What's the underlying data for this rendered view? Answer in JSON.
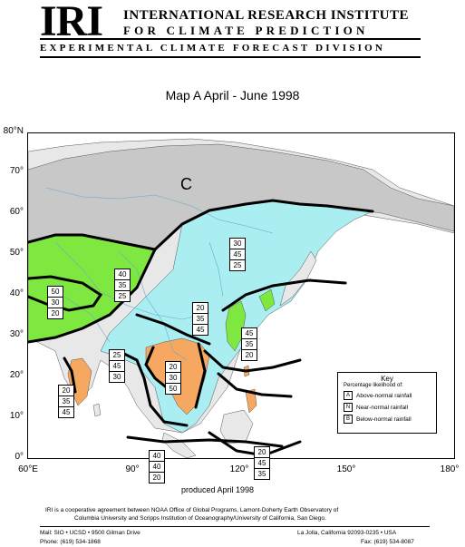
{
  "header": {
    "logo": "IRI",
    "line1": "INTERNATIONAL RESEARCH INSTITUTE",
    "line2": "FOR CLIMATE PREDICTION",
    "line3": "EXPERIMENTAL CLIMATE FORECAST DIVISION"
  },
  "map": {
    "title": "Map A  April - June  1998",
    "y_labels": [
      "80°N",
      "70°",
      "60°",
      "50°",
      "40°",
      "30°",
      "20°",
      "10°",
      "0°"
    ],
    "x_labels": [
      "60°E",
      "90°",
      "120°",
      "150°",
      "180°"
    ],
    "climatology_label": "C",
    "prob_boxes": [
      {
        "values": [
          "30",
          "45",
          "25"
        ]
      },
      {
        "values": [
          "40",
          "35",
          "25"
        ]
      },
      {
        "values": [
          "50",
          "30",
          "20"
        ]
      },
      {
        "values": [
          "20",
          "35",
          "45"
        ]
      },
      {
        "values": [
          "45",
          "35",
          "20"
        ]
      },
      {
        "values": [
          "25",
          "45",
          "30"
        ]
      },
      {
        "values": [
          "20",
          "30",
          "50"
        ]
      },
      {
        "values": [
          "20",
          "35",
          "45"
        ]
      },
      {
        "values": [
          "20",
          "45",
          "35"
        ]
      },
      {
        "values": [
          "40",
          "40",
          "20"
        ]
      }
    ],
    "colors": {
      "land": "#e8e8e8",
      "climatology": "#c8c8c8",
      "above_normal": "#7fe840",
      "below_normal": "#f7a860",
      "near_normal": "#aaeef2",
      "boundaries": "#66aacc"
    }
  },
  "key": {
    "title": "Key",
    "subtitle": "Percentage likelihood of:",
    "items": [
      {
        "letter": "A",
        "label": "Above-normal rainfall"
      },
      {
        "letter": "N",
        "label": "Near-normal rainfall"
      },
      {
        "letter": "B",
        "label": "Below-normal rainfall"
      }
    ]
  },
  "produced": "produced April  1998",
  "footer": {
    "line1": "IRI is a cooperative agreement between NOAA Office of Global Programs, Lamont-Doherty Earth Observatory of",
    "line2": "Columbia University and Scripps Institution of Oceanography/University of California, San Diego.",
    "left1": "Mail: SIO • UCSD • 9500 Gilman Drive",
    "left2": "Phone: (619) 534-1868",
    "right1": "La Jolla, California 92093-0235 • USA",
    "right2": "Fax: (619) 534-8087"
  }
}
